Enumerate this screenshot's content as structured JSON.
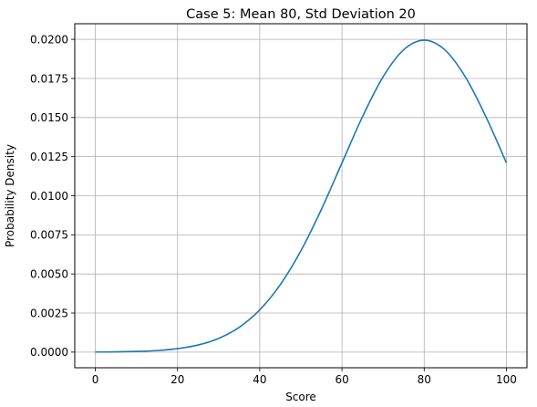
{
  "chart_data": {
    "type": "line",
    "title": "Case 5: Mean 80, Std Deviation 20",
    "xlabel": "Score",
    "ylabel": "Probability Density",
    "xlim": [
      -5,
      105
    ],
    "ylim": [
      -0.001,
      0.021
    ],
    "grid": true,
    "xticks": [
      0,
      20,
      40,
      60,
      80,
      100
    ],
    "xtick_labels": [
      "0",
      "20",
      "40",
      "60",
      "80",
      "100"
    ],
    "yticks": [
      0,
      0.0025,
      0.005,
      0.0075,
      0.01,
      0.0125,
      0.015,
      0.0175,
      0.02
    ],
    "ytick_labels": [
      "0.0000",
      "0.0025",
      "0.0050",
      "0.0075",
      "0.0100",
      "0.0125",
      "0.0150",
      "0.0175",
      "0.0200"
    ],
    "series": [
      {
        "color": "#1f77b4",
        "x": [
          0,
          5,
          10,
          15,
          20,
          25,
          30,
          35,
          40,
          45,
          50,
          55,
          60,
          65,
          70,
          75,
          80,
          85,
          90,
          95,
          100
        ],
        "y": [
          7e-06,
          1.7e-05,
          4.4e-05,
          0.000101,
          0.000222,
          0.000454,
          0.000876,
          0.001587,
          0.0027,
          0.004313,
          0.006476,
          0.009132,
          0.0121,
          0.015057,
          0.017603,
          0.019333,
          0.019947,
          0.019333,
          0.017603,
          0.015057,
          0.0121
        ]
      }
    ]
  }
}
